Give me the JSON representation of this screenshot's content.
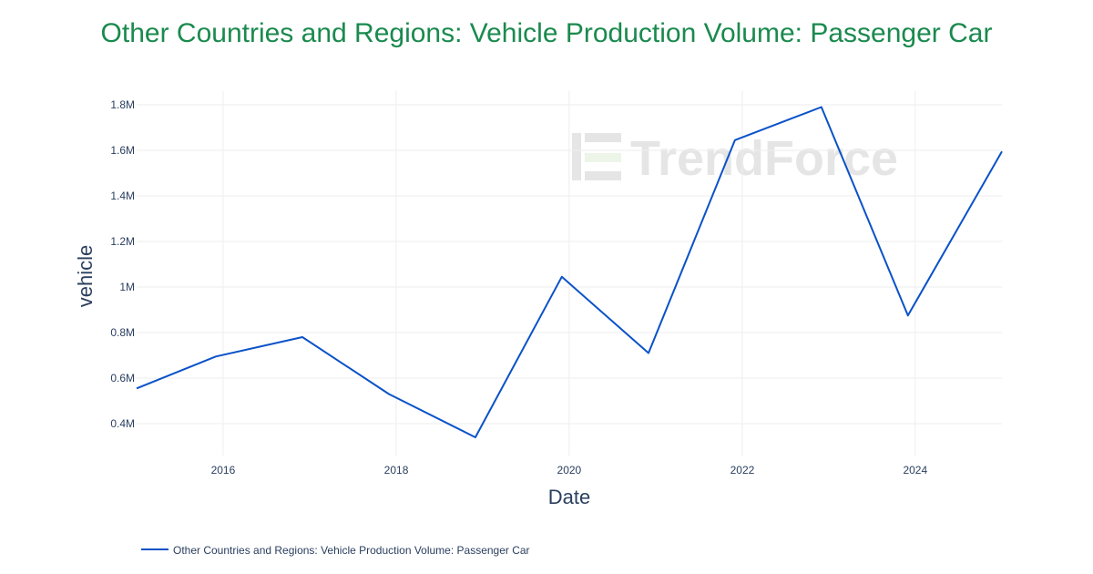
{
  "chart_data": {
    "type": "line",
    "title": "Other Countries and Regions: Vehicle Production Volume: Passenger Car",
    "xlabel": "Date",
    "ylabel": "vehicle",
    "x_ticks": [
      "2016",
      "2018",
      "2020",
      "2022",
      "2024"
    ],
    "y_ticks": [
      {
        "value": 400000,
        "label": "0.4M"
      },
      {
        "value": 600000,
        "label": "0.6M"
      },
      {
        "value": 800000,
        "label": "0.8M"
      },
      {
        "value": 1000000,
        "label": "1M"
      },
      {
        "value": 1200000,
        "label": "1.2M"
      },
      {
        "value": 1400000,
        "label": "1.4M"
      },
      {
        "value": 1600000,
        "label": "1.6M"
      },
      {
        "value": 1800000,
        "label": "1.8M"
      }
    ],
    "xlim": [
      "2015-01-01",
      "2025-01-01"
    ],
    "ylim": [
      260000,
      1860000
    ],
    "grid": true,
    "legend_position": "bottom-left",
    "series": [
      {
        "name": "Other Countries and Regions: Vehicle Production Volume: Passenger Car",
        "color": "#0a52c8",
        "x": [
          "2015-01-01",
          "2015-12-01",
          "2016-12-01",
          "2017-12-01",
          "2018-12-01",
          "2019-12-01",
          "2020-12-01",
          "2021-12-01",
          "2022-12-01",
          "2023-12-01",
          "2025-01-01"
        ],
        "y": [
          555000,
          695000,
          780000,
          530000,
          340000,
          1045000,
          710000,
          1645000,
          1790000,
          875000,
          1595000
        ]
      }
    ]
  },
  "watermark": "TrendForce"
}
